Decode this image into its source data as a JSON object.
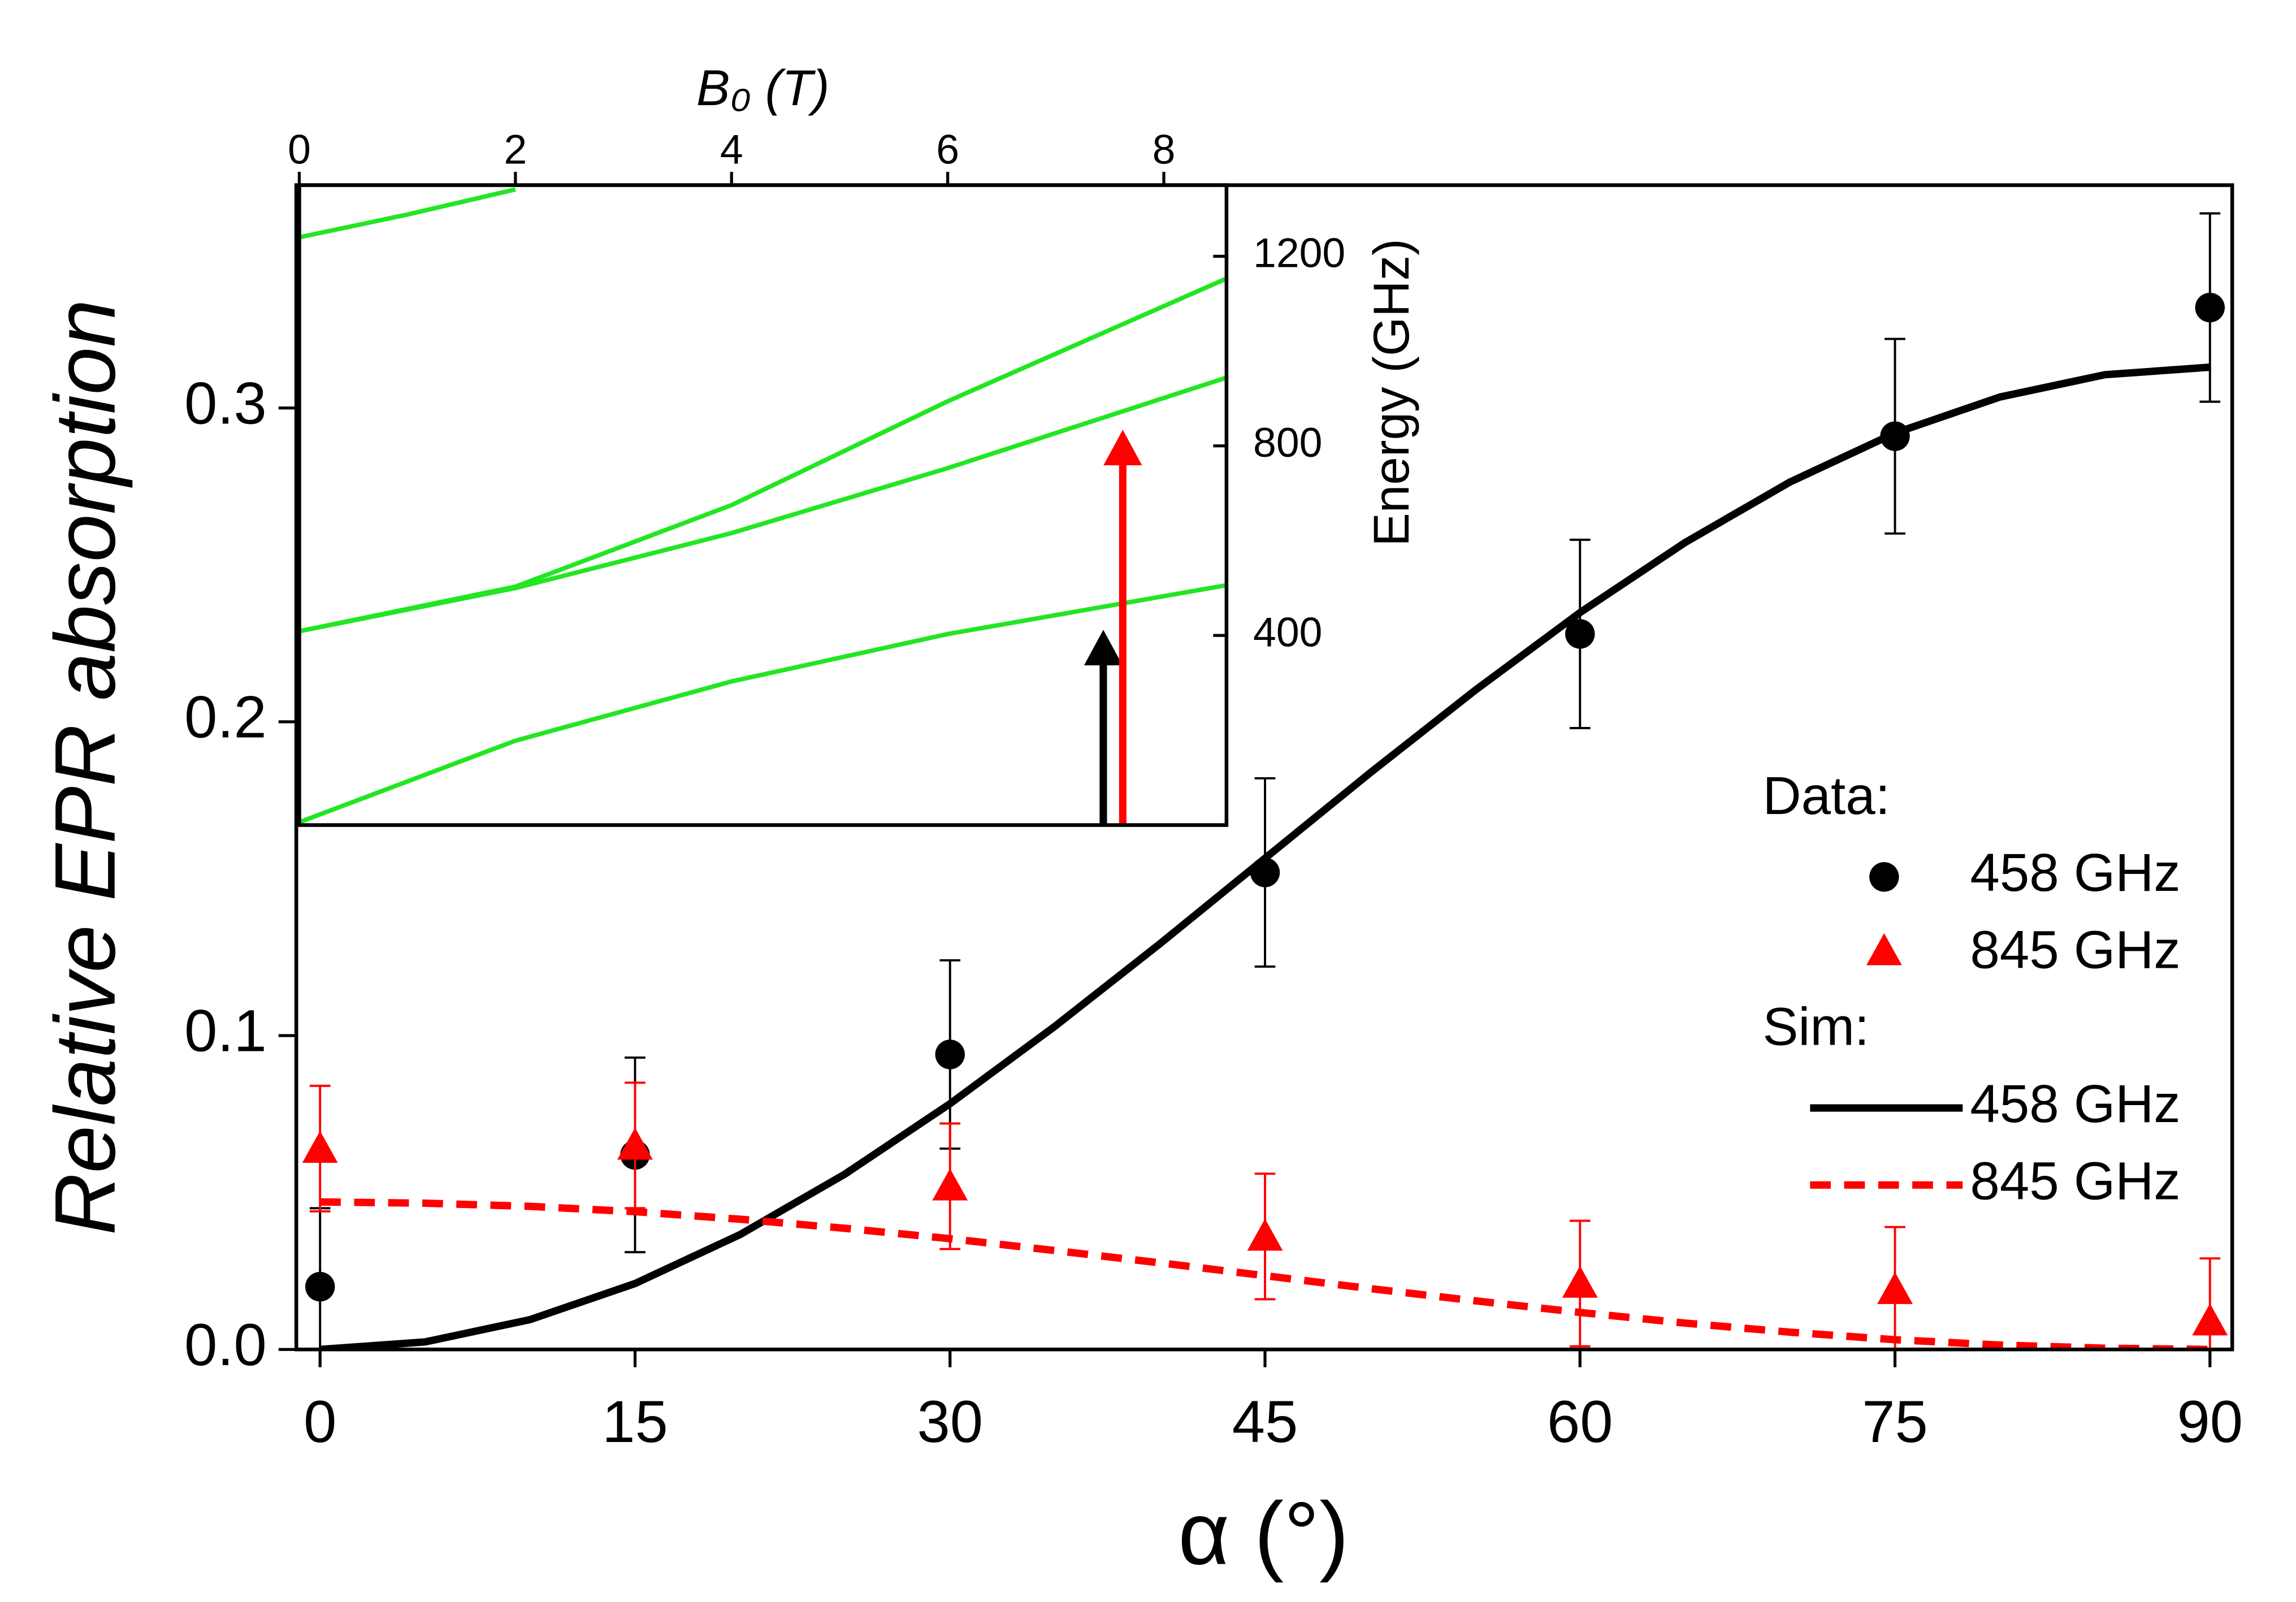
{
  "chart_data": [
    {
      "type": "scatter-line",
      "x_label": "α (°)",
      "y_label": "Relative EPR absorption",
      "xlim": [
        -1.13,
        91.06
      ],
      "ylim": [
        0,
        0.371
      ],
      "xticks": [
        0,
        15,
        30,
        45,
        60,
        75,
        90
      ],
      "yticks": [
        {
          "value": 0,
          "label": "0.0"
        },
        0.1,
        0.2,
        0.3
      ],
      "legend": "right",
      "series": [
        {
          "name": "458 GHz",
          "legend_title": "Data:",
          "kind": "points",
          "marker": "circle",
          "color": "#000000",
          "x": [
            0,
            15,
            30,
            45,
            60,
            75,
            90
          ],
          "values": [
            0.02,
            0.062,
            0.094,
            0.152,
            0.228,
            0.291,
            0.332
          ],
          "errors": [
            0.025,
            0.031,
            0.03,
            0.03,
            0.03,
            0.031,
            0.03
          ]
        },
        {
          "name": "845 GHz",
          "kind": "points",
          "marker": "triangle",
          "color": "#ff0000",
          "x": [
            0,
            15,
            30,
            45,
            60,
            75,
            90
          ],
          "values": [
            0.064,
            0.065,
            0.052,
            0.036,
            0.021,
            0.019,
            0.009
          ],
          "errors": [
            0.02,
            0.02,
            0.02,
            0.02,
            0.02,
            0.02,
            0.02
          ]
        },
        {
          "name": "458 GHz",
          "legend_title": "Sim:",
          "kind": "line",
          "dashed": false,
          "color": "#000000",
          "x": [
            0,
            5,
            10,
            15,
            20,
            25,
            30,
            35,
            40,
            45,
            50,
            55,
            60,
            65,
            70,
            75,
            80,
            85,
            90
          ],
          "values": [
            0,
            0.0024,
            0.0095,
            0.021,
            0.0366,
            0.0559,
            0.0783,
            0.103,
            0.1293,
            0.1565,
            0.1837,
            0.21,
            0.2348,
            0.2571,
            0.2764,
            0.292,
            0.3035,
            0.3106,
            0.313
          ]
        },
        {
          "name": "845 GHz",
          "kind": "line",
          "dashed": true,
          "color": "#ff0000",
          "x": [
            0,
            5,
            10,
            15,
            20,
            25,
            30,
            35,
            40,
            45,
            50,
            55,
            60,
            65,
            70,
            75,
            80,
            85,
            90
          ],
          "values": [
            0.047,
            0.0466,
            0.0456,
            0.0439,
            0.0415,
            0.0386,
            0.0353,
            0.0315,
            0.0276,
            0.0235,
            0.0194,
            0.0155,
            0.0118,
            0.0084,
            0.0055,
            0.0031,
            0.0014,
            0.0004,
            0
          ]
        }
      ]
    },
    {
      "type": "line",
      "x_label": "B₀ (T)",
      "y_label": "Energy (GHz)",
      "xlim": [
        0,
        8.58
      ],
      "ylim": [
        0,
        1350
      ],
      "xticks": [
        0,
        2,
        4,
        6,
        8
      ],
      "yticks": [
        400,
        800,
        1200
      ],
      "series": [
        {
          "color": "#22e622",
          "x": [
            0,
            1,
            2
          ],
          "values": [
            1240,
            1288,
            1341
          ]
        },
        {
          "color": "#22e622",
          "x": [
            0,
            2,
            4,
            6,
            8.58
          ],
          "values": [
            409,
            503,
            675,
            894,
            1153
          ]
        },
        {
          "color": "#22e622",
          "x": [
            0,
            2,
            4,
            6,
            8.58
          ],
          "values": [
            409,
            500,
            616,
            753,
            944
          ]
        },
        {
          "color": "#22e622",
          "x": [
            0,
            2,
            4,
            6,
            8.58
          ],
          "values": [
            6,
            178,
            303,
            403,
            506
          ]
        }
      ],
      "arrows": [
        {
          "x": 7.44,
          "y": 412,
          "color": "#000000"
        },
        {
          "x": 7.62,
          "y": 834,
          "color": "#ff0000"
        }
      ]
    }
  ]
}
